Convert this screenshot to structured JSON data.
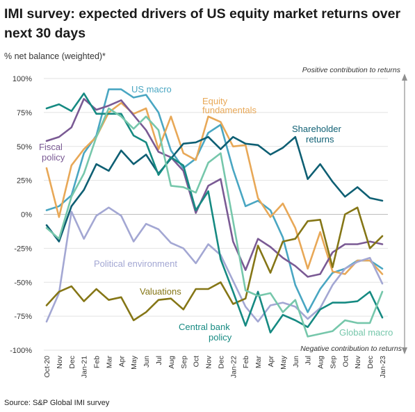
{
  "title": "IMI survey: expected drivers of US equity market returns over next 30 days",
  "ylabel": "% net balance (weighted)*",
  "source": "Source: S&P Global IMI survey",
  "chart_data": {
    "type": "line",
    "ylim": [
      -100,
      100
    ],
    "yticks": [
      100,
      75,
      50,
      25,
      0,
      -25,
      -50,
      -75,
      -100
    ],
    "ytick_labels": [
      "100%",
      "75%",
      "50%",
      "25%",
      "0%",
      "-25%",
      "-50%",
      "-75%",
      "-100%"
    ],
    "categories": [
      "Oct-20",
      "Nov",
      "Dec",
      "Jan-21",
      "Feb",
      "Mar",
      "Apr",
      "May",
      "Jun",
      "Jul",
      "Aug",
      "Sep",
      "Oct",
      "Nov",
      "Dec",
      "Jan-22",
      "Feb",
      "Mar",
      "Apr",
      "May",
      "Jun",
      "Jul",
      "Aug",
      "Sep",
      "Oct",
      "Nov",
      "Dec",
      "Jan-23"
    ],
    "arrow_top_label": "Positive contribution to returns",
    "arrow_bottom_label": "Negative contribution to returns",
    "series": [
      {
        "name": "US macro",
        "color": "#49a6c2",
        "values": [
          3,
          6,
          14,
          45,
          58,
          92,
          92,
          86,
          88,
          75,
          47,
          34,
          41,
          60,
          66,
          33,
          6,
          10,
          3,
          -17,
          -52,
          -72,
          -55,
          -43,
          -40,
          -34,
          -34,
          -40
        ]
      },
      {
        "name": "Equity fundamentals",
        "color": "#e8a857",
        "values": [
          34,
          -2,
          36,
          48,
          57,
          75,
          82,
          74,
          78,
          48,
          72,
          45,
          40,
          72,
          68,
          50,
          51,
          12,
          -2,
          8,
          -10,
          -40,
          -13,
          -42,
          -44,
          -34,
          -34,
          -44
        ]
      },
      {
        "name": "Shareholder returns",
        "color": "#0e5f73",
        "values": [
          -8,
          -20,
          6,
          18,
          37,
          32,
          47,
          37,
          44,
          30,
          41,
          52,
          53,
          57,
          48,
          57,
          52,
          51,
          44,
          49,
          57,
          26,
          37,
          24,
          13,
          20,
          12,
          10
        ]
      },
      {
        "name": "Fiscal policy",
        "color": "#7a5a94",
        "values": [
          54,
          57,
          64,
          85,
          77,
          80,
          84,
          73,
          62,
          46,
          42,
          32,
          1,
          21,
          26,
          -20,
          -41,
          -18,
          -24,
          -32,
          -38,
          -46,
          -44,
          -28,
          -22,
          -22,
          -20,
          -22
        ]
      },
      {
        "name": "Political environment",
        "color": "#a3a7d3",
        "values": [
          -79,
          -58,
          2,
          -18,
          -1,
          5,
          -1,
          -20,
          -7,
          -11,
          -21,
          -25,
          -36,
          -22,
          -30,
          -49,
          -68,
          -79,
          -67,
          -65,
          -68,
          -77,
          -69,
          -52,
          -40,
          -35,
          -32,
          -51
        ]
      },
      {
        "name": "Valuations",
        "color": "#857616",
        "values": [
          -67,
          -57,
          -53,
          -64,
          -55,
          -63,
          -61,
          -78,
          -72,
          -63,
          -62,
          -70,
          -55,
          -55,
          -50,
          -66,
          -62,
          -23,
          -43,
          -20,
          -18,
          -5,
          -4,
          -39,
          0,
          5,
          -25,
          -16
        ]
      },
      {
        "name": "Central bank policy",
        "color": "#168a82",
        "values": [
          78,
          81,
          76,
          89,
          74,
          74,
          74,
          58,
          53,
          29,
          42,
          36,
          3,
          17,
          -33,
          -57,
          -82,
          -57,
          -87,
          -74,
          -78,
          -83,
          -70,
          -65,
          -65,
          -64,
          -57,
          -76
        ]
      },
      {
        "name": "Global macro",
        "color": "#76c7ab",
        "values": [
          -10,
          -18,
          13,
          30,
          57,
          78,
          72,
          63,
          72,
          62,
          21,
          20,
          16,
          38,
          45,
          -5,
          -56,
          -60,
          -58,
          -72,
          -63,
          -90,
          -88,
          -86,
          -78,
          -80,
          -80,
          -57
        ]
      }
    ],
    "annotations": [
      {
        "text": "US macro",
        "series": "US macro"
      },
      {
        "text": "Equity",
        "series": "Equity fundamentals"
      },
      {
        "text": "fundamentals",
        "series": "Equity fundamentals"
      },
      {
        "text": "Shareholder",
        "series": "Shareholder returns"
      },
      {
        "text": "returns",
        "series": "Shareholder returns"
      },
      {
        "text": "Fiscal",
        "series": "Fiscal policy"
      },
      {
        "text": "policy",
        "series": "Fiscal policy"
      },
      {
        "text": "Political environment",
        "series": "Political environment"
      },
      {
        "text": "Valuations",
        "series": "Valuations"
      },
      {
        "text": "Central bank",
        "series": "Central bank policy"
      },
      {
        "text": "policy",
        "series": "Central bank policy"
      },
      {
        "text": "Global macro",
        "series": "Global macro"
      }
    ]
  }
}
